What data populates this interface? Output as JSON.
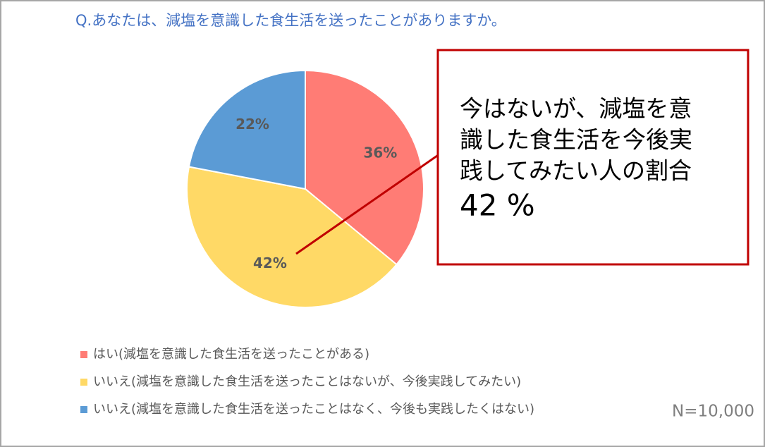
{
  "chart_data": {
    "type": "pie",
    "title": "Q.あなたは、減塩を意識した食生活を送ったことがありますか。",
    "categories": [
      "はい(減塩を意識した食生活を送ったことがある)",
      "いいえ(減塩を意識した食生活を送ったことはないが、今後実践してみたい)",
      "いいえ(減塩を意識した食生活を送ったことはなく、今後も実践したくはない)"
    ],
    "values": [
      36,
      42,
      22
    ],
    "value_labels": [
      "36%",
      "42%",
      "22%"
    ],
    "colors": [
      "#ff7c75",
      "#ffd966",
      "#5b9bd5"
    ],
    "annotation": {
      "lines": [
        "今はないが、減塩を意",
        "識した食生活を今後実",
        "践してみたい人の割合"
      ],
      "value": "42 %"
    },
    "note": "N=10,000"
  }
}
